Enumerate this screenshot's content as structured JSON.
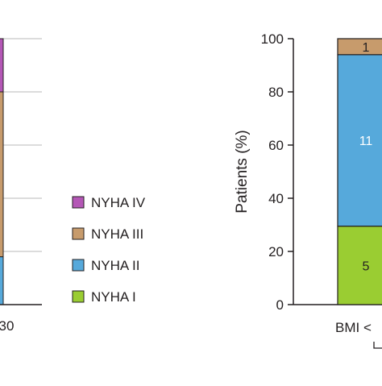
{
  "colors": {
    "nyha_iv": "#b457b6",
    "nyha_iii": "#c79b6c",
    "nyha_ii": "#56a9db",
    "nyha_i": "#9acd32",
    "axis": "#231f20",
    "grid": "#c8c8c8"
  },
  "legend": {
    "items": [
      {
        "label": "NYHA IV",
        "color_key": "nyha_iv"
      },
      {
        "label": "NYHA III",
        "color_key": "nyha_iii"
      },
      {
        "label": "NYHA II",
        "color_key": "nyha_ii"
      },
      {
        "label": "NYHA I",
        "color_key": "nyha_i"
      }
    ]
  },
  "chart_data": [
    {
      "type": "bar",
      "stacked": true,
      "categories": [
        "30"
      ],
      "xlabel": "",
      "ylabel": "",
      "ylim": [
        0,
        100
      ],
      "grid": true,
      "series": [
        {
          "name": "NYHA I",
          "color_key": "nyha_i",
          "values": [
            0
          ],
          "labels": [
            ""
          ]
        },
        {
          "name": "NYHA II",
          "color_key": "nyha_ii",
          "values": [
            18
          ],
          "labels": [
            ""
          ]
        },
        {
          "name": "NYHA III",
          "color_key": "nyha_iii",
          "values": [
            62
          ],
          "labels": [
            ""
          ]
        },
        {
          "name": "NYHA IV",
          "color_key": "nyha_iv",
          "values": [
            20
          ],
          "labels": [
            ""
          ]
        }
      ]
    },
    {
      "type": "bar",
      "stacked": true,
      "categories": [
        "BMI <"
      ],
      "xlabel": "",
      "ylabel": "Patients (%)",
      "ylim": [
        0,
        100
      ],
      "yticks": [
        "0",
        "20",
        "40",
        "60",
        "80",
        "100"
      ],
      "grid": false,
      "series": [
        {
          "name": "NYHA I",
          "color_key": "nyha_i",
          "values": [
            29.5
          ],
          "labels": [
            "5"
          ]
        },
        {
          "name": "NYHA II",
          "color_key": "nyha_ii",
          "values": [
            64.5
          ],
          "labels": [
            "11"
          ]
        },
        {
          "name": "NYHA III",
          "color_key": "nyha_iii",
          "values": [
            6
          ],
          "labels": [
            "1"
          ]
        }
      ]
    }
  ]
}
